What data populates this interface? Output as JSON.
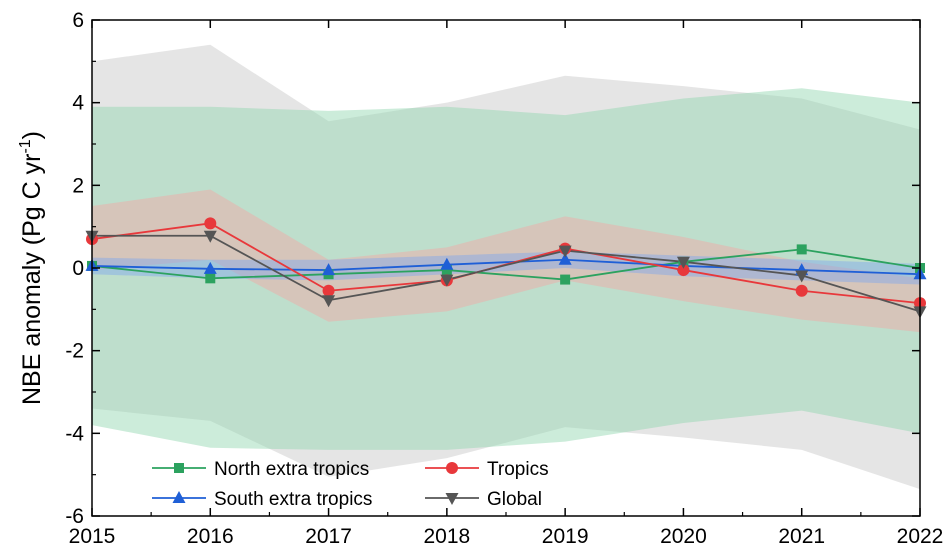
{
  "chart_data": {
    "type": "line",
    "x": [
      2015,
      2016,
      2017,
      2018,
      2019,
      2020,
      2021,
      2022
    ],
    "xlim": [
      2015,
      2022
    ],
    "ylim": [
      -6,
      6
    ],
    "yticks": [
      -6,
      -4,
      -2,
      0,
      2,
      4,
      6
    ],
    "xlabel": "",
    "ylabel": "NBE anomaly (Pg C yr",
    "ylabel_superscript": "-1",
    "ylabel_close": ")",
    "grid": false,
    "legend_position": "bottom-left",
    "series": [
      {
        "name": "North extra tropics",
        "color": "#2ca25f",
        "marker": "square",
        "values": [
          0.05,
          -0.25,
          -0.15,
          -0.05,
          -0.28,
          0.15,
          0.45,
          0.0
        ],
        "band_upper": [
          3.9,
          3.9,
          3.8,
          3.9,
          3.7,
          4.1,
          4.35,
          4.0
        ],
        "band_lower": [
          -3.8,
          -4.35,
          -4.4,
          -4.4,
          -4.2,
          -3.75,
          -3.45,
          -4.0
        ],
        "band_color": "#8fd5ae"
      },
      {
        "name": "South extra tropics",
        "color": "#1f5fd6",
        "marker": "triangle-up",
        "values": [
          0.05,
          -0.02,
          -0.05,
          0.08,
          0.2,
          0.05,
          -0.05,
          -0.15
        ],
        "band_upper": [
          0.25,
          0.2,
          0.2,
          0.3,
          0.4,
          0.3,
          0.2,
          0.1
        ],
        "band_lower": [
          -0.15,
          -0.25,
          -0.3,
          -0.15,
          0.0,
          -0.2,
          -0.3,
          -0.4
        ],
        "band_color": "#7ea6ee"
      },
      {
        "name": "Tropics",
        "color": "#e8383b",
        "marker": "circle",
        "values": [
          0.7,
          1.08,
          -0.55,
          -0.3,
          0.47,
          -0.05,
          -0.55,
          -0.85
        ],
        "band_upper": [
          1.5,
          1.9,
          0.2,
          0.5,
          1.25,
          0.75,
          0.15,
          -0.25
        ],
        "band_lower": [
          -0.05,
          0.2,
          -1.3,
          -1.05,
          -0.3,
          -0.8,
          -1.25,
          -1.55
        ],
        "band_color": "#f4a6a4"
      },
      {
        "name": "Global",
        "color": "#555555",
        "marker": "triangle-down",
        "values": [
          0.78,
          0.78,
          -0.78,
          -0.28,
          0.42,
          0.15,
          -0.18,
          -1.05
        ],
        "band_upper": [
          5.0,
          5.4,
          3.55,
          4.0,
          4.65,
          4.4,
          4.1,
          3.35
        ],
        "band_lower": [
          -3.4,
          -3.7,
          -5.05,
          -4.6,
          -3.85,
          -4.1,
          -4.4,
          -5.35
        ],
        "band_color": "#d4d4d4"
      }
    ]
  }
}
